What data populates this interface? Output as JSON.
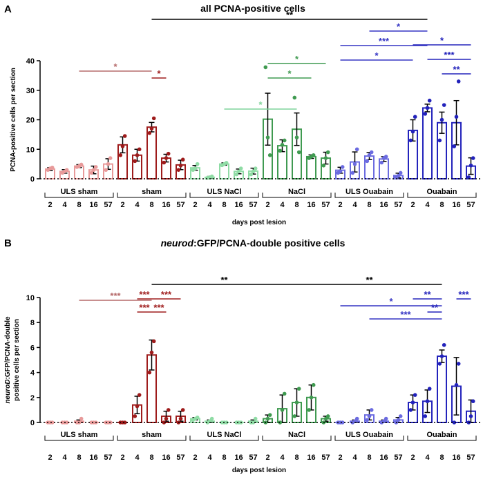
{
  "chart_data": [
    {
      "panel": "A",
      "type": "bar",
      "title": "all PCNA-positive cells",
      "ylabel": "PCNA-positive cells per section",
      "xlabel": "days post lesion",
      "ylim": [
        0,
        40
      ],
      "yticks": [
        "0",
        "10",
        "20",
        "30",
        "40"
      ],
      "days": [
        "2",
        "4",
        "8",
        "16",
        "57"
      ],
      "groups": [
        {
          "label": "ULS sham",
          "color": "#e89a9a",
          "values": [
            3.3,
            2.5,
            4.3,
            3.0,
            5.0
          ],
          "errors": [
            0.5,
            0.6,
            0.5,
            1.3,
            1.8
          ],
          "points": [
            [
              3.0,
              3.5,
              3.8
            ],
            [
              2.0,
              2.5,
              3.0
            ],
            [
              4.0,
              4.3,
              4.8
            ],
            [
              2.0,
              3.0,
              4.0
            ],
            [
              3.0,
              5.0,
              7.0
            ]
          ]
        },
        {
          "label": "sham",
          "color": "#9e1b1b",
          "values": [
            11.5,
            8.0,
            17.5,
            7.0,
            4.7
          ],
          "errors": [
            2.7,
            2.0,
            1.6,
            1.3,
            1.6
          ],
          "points": [
            [
              8.0,
              11.0,
              14.5
            ],
            [
              6.0,
              8.0,
              10.0
            ],
            [
              15.5,
              17.0,
              20.5
            ],
            [
              5.5,
              7.0,
              8.5
            ],
            [
              3.0,
              4.5,
              6.5
            ]
          ]
        },
        {
          "label": "ULS NaCl",
          "color": "#8fdca5",
          "values": [
            3.7,
            0.5,
            5.0,
            2.5,
            2.6
          ],
          "errors": [
            0.8,
            0.3,
            0.4,
            0.8,
            1.0
          ],
          "points": [
            [
              3.0,
              3.5,
              5.0
            ],
            [
              0.3,
              0.5,
              0.8
            ],
            [
              4.6,
              5.0,
              5.4
            ],
            [
              1.5,
              2.5,
              3.5
            ],
            [
              1.5,
              2.5,
              3.5
            ]
          ]
        },
        {
          "label": "NaCl",
          "color": "#3f9a50",
          "values": [
            20.2,
            11.2,
            16.8,
            7.5,
            7.0
          ],
          "errors": [
            8.8,
            2.0,
            5.5,
            0.6,
            2.0
          ],
          "points": [
            [
              37.8,
              14.0,
              8.0
            ],
            [
              9.5,
              11.5,
              13.0
            ],
            [
              27.5,
              14.0,
              9.0
            ],
            [
              7.0,
              7.5,
              8.0
            ],
            [
              4.5,
              7.0,
              9.0
            ]
          ]
        },
        {
          "label": "ULS Ouabain",
          "color": "#6b6be0",
          "values": [
            2.9,
            5.7,
            7.7,
            6.7,
            1.1
          ],
          "errors": [
            1.0,
            3.4,
            1.2,
            0.8,
            0.8
          ],
          "points": [
            [
              2.0,
              2.5,
              4.0
            ],
            [
              2.0,
              5.0,
              10.0
            ],
            [
              6.0,
              8.0,
              9.0
            ],
            [
              5.5,
              7.0,
              7.5
            ],
            [
              0.5,
              1.0,
              2.0
            ]
          ]
        },
        {
          "label": "Ouabain",
          "color": "#2222bb",
          "values": [
            16.4,
            24.0,
            19.0,
            19.0,
            4.3
          ],
          "errors": [
            3.6,
            1.3,
            3.6,
            7.5,
            2.8
          ],
          "points": [
            [
              13.0,
              16.0,
              21.0
            ],
            [
              22.0,
              24.0,
              26.5
            ],
            [
              13.0,
              20.0,
              25.0
            ],
            [
              11.0,
              21.0,
              33.0
            ],
            [
              0.5,
              4.5,
              7.0
            ]
          ]
        }
      ],
      "significance": [
        {
          "from": [
            0,
            2
          ],
          "to": [
            1,
            2
          ],
          "label": "*",
          "color": "#b56a6a",
          "tier": 0
        },
        {
          "from": [
            1,
            2
          ],
          "to": [
            1,
            3
          ],
          "label": "*",
          "color": "#9e1b1b",
          "tier": 0
        },
        {
          "from": [
            2,
            2
          ],
          "to": [
            3,
            2
          ],
          "label": "*",
          "color": "#7fd39a",
          "tier": 0
        },
        {
          "from": [
            3,
            0
          ],
          "to": [
            3,
            4
          ],
          "label": "*",
          "color": "#3f9a50",
          "tier": 1
        },
        {
          "from": [
            3,
            0
          ],
          "to": [
            3,
            3
          ],
          "label": "*",
          "color": "#3f9a50",
          "tier": 0
        },
        {
          "from": [
            4,
            0
          ],
          "to": [
            5,
            0
          ],
          "label": "*",
          "color": "#3434c4",
          "tier": 0
        },
        {
          "from": [
            4,
            0
          ],
          "to": [
            5,
            1
          ],
          "label": "***",
          "color": "#3434c4",
          "tier": 1
        },
        {
          "from": [
            4,
            2
          ],
          "to": [
            5,
            1
          ],
          "label": "*",
          "color": "#3434c4",
          "tier": 2
        },
        {
          "from": [
            5,
            0
          ],
          "to": [
            5,
            4
          ],
          "label": "*",
          "color": "#2222bb",
          "tier": 0
        },
        {
          "from": [
            5,
            1
          ],
          "to": [
            5,
            4
          ],
          "label": "***",
          "color": "#2222bb",
          "tier": -1
        },
        {
          "from": [
            5,
            2
          ],
          "to": [
            5,
            4
          ],
          "label": "**",
          "color": "#2222bb",
          "tier": -2
        },
        {
          "from": [
            1,
            2
          ],
          "to": [
            5,
            1
          ],
          "label": "**",
          "color": "#000000",
          "tier": 0
        }
      ]
    },
    {
      "panel": "B",
      "type": "bar",
      "title_italic": "neurod",
      "title_rest": ":GFP/PCNA-double positive cells",
      "ylabel_italic": "neuroD",
      "ylabel_rest": ":GFP/PCNA-double",
      "ylabel_line2": "positive cells per section",
      "xlabel": "days post lesion",
      "ylim": [
        0,
        10
      ],
      "yticks": [
        "0",
        "2",
        "4",
        "6",
        "8",
        "10"
      ],
      "days": [
        "2",
        "4",
        "8",
        "16",
        "57"
      ],
      "groups": [
        {
          "label": "ULS sham",
          "color": "#e89a9a",
          "values": [
            0,
            0,
            0.1,
            0,
            0
          ],
          "errors": [
            0,
            0,
            0.1,
            0,
            0
          ],
          "points": [
            [
              0,
              0,
              0
            ],
            [
              0,
              0,
              0
            ],
            [
              0,
              0,
              0.3
            ],
            [
              0,
              0,
              0
            ],
            [
              0,
              0,
              0
            ]
          ]
        },
        {
          "label": "sham",
          "color": "#9e1b1b",
          "values": [
            0,
            1.4,
            5.4,
            0.5,
            0.5
          ],
          "errors": [
            0,
            0.7,
            1.2,
            0.4,
            0.4
          ],
          "points": [
            [
              0,
              0,
              0
            ],
            [
              0.5,
              1.3,
              2.2
            ],
            [
              4.0,
              5.6,
              6.5
            ],
            [
              0,
              0.3,
              1.0
            ],
            [
              0,
              0.3,
              1.0
            ]
          ]
        },
        {
          "label": "ULS NaCl",
          "color": "#8fdca5",
          "values": [
            0.3,
            0.1,
            0,
            0,
            0.1
          ],
          "errors": [
            0.1,
            0.1,
            0,
            0,
            0.1
          ],
          "points": [
            [
              0.2,
              0.3,
              0.4
            ],
            [
              0,
              0.1,
              0.3
            ],
            [
              0,
              0,
              0
            ],
            [
              0,
              0,
              0
            ],
            [
              0,
              0,
              0.3
            ]
          ]
        },
        {
          "label": "NaCl",
          "color": "#3f9a50",
          "values": [
            0.3,
            1.1,
            1.6,
            2.0,
            0.3
          ],
          "errors": [
            0.3,
            1.1,
            1.1,
            1.0,
            0.2
          ],
          "points": [
            [
              0,
              0.3,
              0.6
            ],
            [
              0,
              1.0,
              2.3
            ],
            [
              0.5,
              1.6,
              2.7
            ],
            [
              1.0,
              2.0,
              3.0
            ],
            [
              0,
              0.3,
              0.5
            ]
          ]
        },
        {
          "label": "ULS Ouabain",
          "color": "#6b6be0",
          "values": [
            0,
            0.1,
            0.6,
            0.1,
            0.2
          ],
          "errors": [
            0,
            0.1,
            0.4,
            0.1,
            0.2
          ],
          "points": [
            [
              0,
              0,
              0
            ],
            [
              0,
              0.1,
              0.3
            ],
            [
              0.2,
              0.5,
              1.0
            ],
            [
              0,
              0.1,
              0.3
            ],
            [
              0,
              0.2,
              0.5
            ]
          ]
        },
        {
          "label": "Ouabain",
          "color": "#2222bb",
          "values": [
            1.6,
            1.7,
            5.3,
            2.9,
            0.9
          ],
          "errors": [
            0.6,
            0.9,
            0.5,
            2.3,
            0.9
          ],
          "points": [
            [
              1.0,
              1.6,
              2.2
            ],
            [
              0.5,
              1.7,
              2.7
            ],
            [
              4.7,
              5.3,
              6.2
            ],
            [
              0,
              3.0,
              4.7
            ],
            [
              0,
              0.5,
              1.7
            ]
          ]
        }
      ],
      "significance": [
        {
          "from": [
            0,
            2
          ],
          "to": [
            1,
            2
          ],
          "label": "***",
          "color": "#b56a6a",
          "tier": 0
        },
        {
          "from": [
            1,
            1
          ],
          "to": [
            1,
            2
          ],
          "label": "***",
          "color": "#9e1b1b",
          "tier": 0
        },
        {
          "from": [
            1,
            1
          ],
          "to": [
            1,
            2
          ],
          "label": "***",
          "color": "#9e1b1b",
          "tier": -1
        },
        {
          "from": [
            1,
            2
          ],
          "to": [
            1,
            4
          ],
          "label": "***",
          "color": "#9e1b1b",
          "tier": 0
        },
        {
          "from": [
            1,
            2
          ],
          "to": [
            1,
            3
          ],
          "label": "***",
          "color": "#9e1b1b",
          "tier": -1
        },
        {
          "from": [
            1,
            2
          ],
          "to": [
            3,
            2
          ],
          "label": "**",
          "color": "#000000",
          "tier": 0
        },
        {
          "from": [
            3,
            2
          ],
          "to": [
            5,
            2
          ],
          "label": "**",
          "color": "#000000",
          "tier": 0
        },
        {
          "from": [
            4,
            0
          ],
          "to": [
            5,
            2
          ],
          "label": "*",
          "color": "#3434c4",
          "tier": 0
        },
        {
          "from": [
            4,
            2
          ],
          "to": [
            5,
            2
          ],
          "label": "***",
          "color": "#3434c4",
          "tier": -1
        },
        {
          "from": [
            5,
            0
          ],
          "to": [
            5,
            2
          ],
          "label": "**",
          "color": "#2222bb",
          "tier": 0
        },
        {
          "from": [
            5,
            1
          ],
          "to": [
            5,
            2
          ],
          "label": "**",
          "color": "#2222bb",
          "tier": -1
        },
        {
          "from": [
            5,
            3
          ],
          "to": [
            5,
            4
          ],
          "label": "***",
          "color": "#2222bb",
          "tier": 0
        }
      ]
    }
  ]
}
